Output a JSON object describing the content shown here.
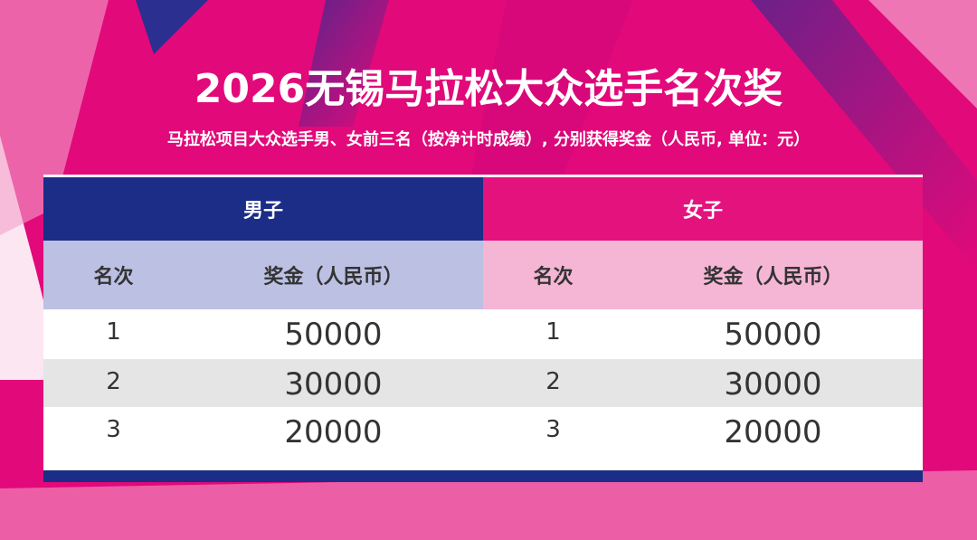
{
  "title": "2026无锡马拉松大众选手名次奖",
  "subtitle": "马拉松项目大众选手男、女前三名（按净计时成绩）, 分别获得奖金（人民币, 单位：元）",
  "table": {
    "groups": [
      "男子",
      "女子"
    ],
    "columns": [
      "名次",
      "奖金（人民币）",
      "名次",
      "奖金（人民币）"
    ],
    "rows": [
      [
        1,
        50000,
        1,
        50000
      ],
      [
        2,
        30000,
        2,
        30000
      ],
      [
        3,
        20000,
        3,
        20000
      ]
    ]
  }
}
